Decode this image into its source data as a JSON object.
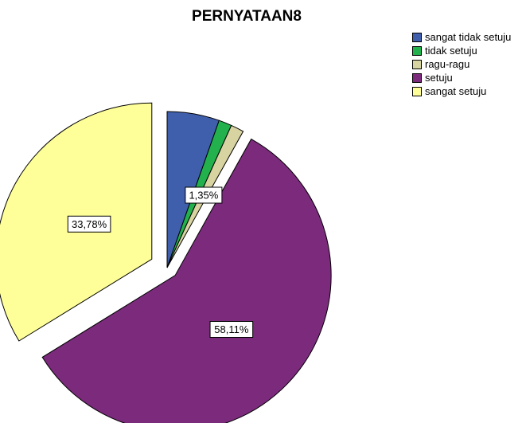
{
  "chart_data": {
    "type": "pie",
    "title": "PERNYATAAN8",
    "categories": [
      "sangat tidak setuju",
      "tidak setuju",
      "ragu-ragu",
      "setuju",
      "sangat setuju"
    ],
    "values": [
      5.41,
      1.35,
      1.35,
      58.11,
      33.78
    ],
    "unit": "%",
    "colors": [
      "#3f5fad",
      "#22b14c",
      "#d8d4a2",
      "#7b2a7c",
      "#ffff99"
    ],
    "data_labels": [
      {
        "category": "ragu-ragu",
        "text": "1,35%"
      },
      {
        "category": "setuju",
        "text": "58,11%"
      },
      {
        "category": "sangat setuju",
        "text": "33,78%"
      }
    ],
    "exploded": true,
    "legend_position": "top-right"
  }
}
